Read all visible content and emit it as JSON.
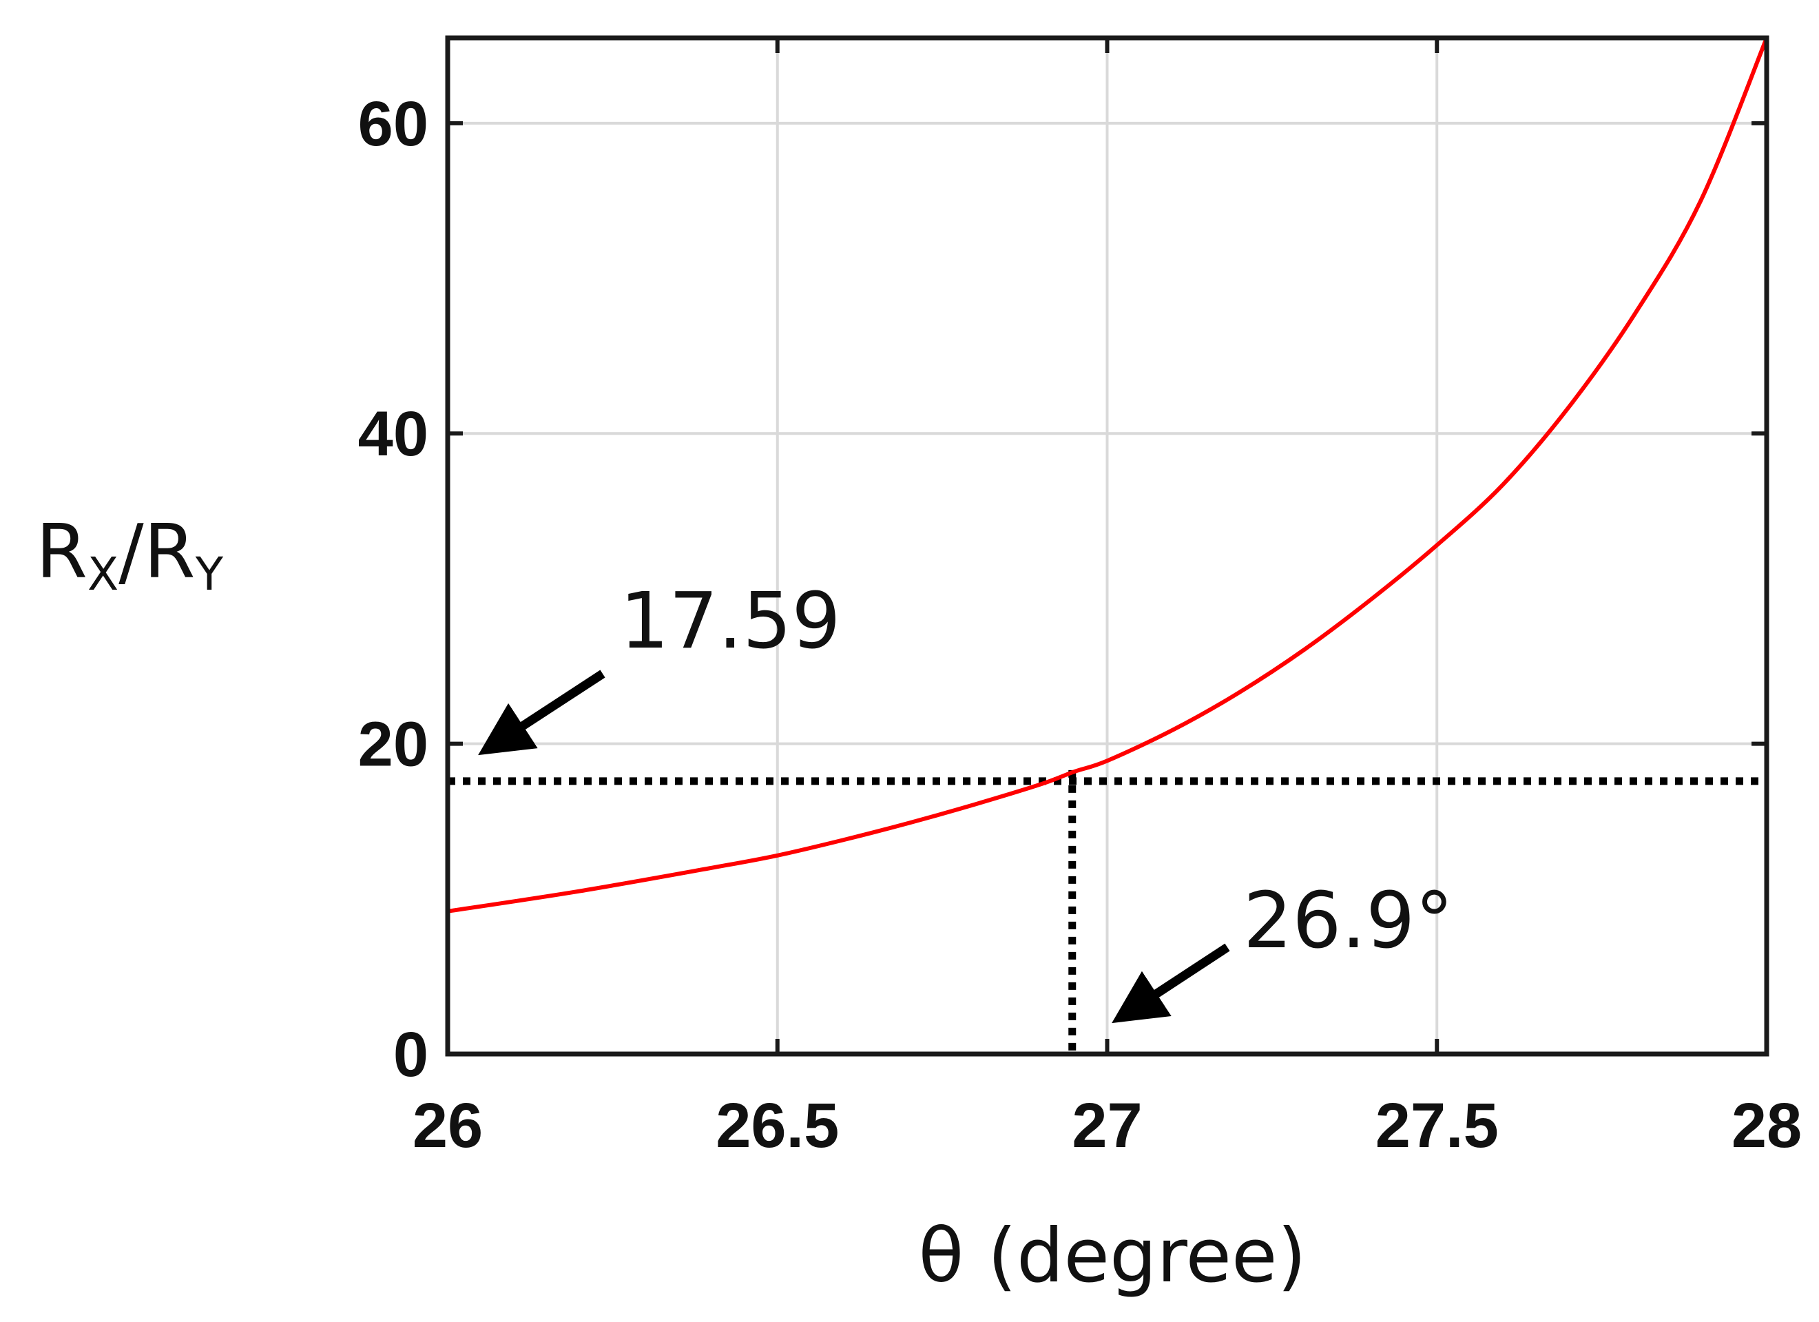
{
  "chart_data": {
    "type": "line",
    "title": "",
    "xlabel": "θ (degree)",
    "ylabel": {
      "main_1": "R",
      "sub_1": "X",
      "slash": "/",
      "main_2": "R",
      "sub_2": "Y"
    },
    "xlim": [
      26,
      28
    ],
    "ylim": [
      0,
      65.5
    ],
    "xticks": [
      "26",
      "26.5",
      "27",
      "27.5",
      "28"
    ],
    "yticks": [
      "0",
      "20",
      "40",
      "60"
    ],
    "grid": true,
    "series": [
      {
        "color": "#ff0000",
        "x": [
          26.0,
          26.2,
          26.4,
          26.5,
          26.6,
          26.7,
          26.8,
          26.9,
          26.95,
          27.0,
          27.1,
          27.2,
          27.3,
          27.4,
          27.5,
          27.6,
          27.7,
          27.8,
          27.9,
          28.0
        ],
        "y": [
          9.2,
          10.5,
          12.0,
          12.8,
          13.8,
          14.9,
          16.1,
          17.4,
          18.2,
          18.9,
          20.9,
          23.3,
          26.1,
          29.3,
          32.8,
          36.7,
          41.7,
          47.7,
          55.0,
          65.5
        ]
      }
    ],
    "reference_lines": [
      {
        "orientation": "horizontal",
        "value": 17.59,
        "style": "dotted",
        "color": "#000000"
      },
      {
        "orientation": "vertical",
        "value": 26.9,
        "style": "dotted",
        "color": "#000000"
      }
    ],
    "annotations": [
      {
        "text": "17.59",
        "points_to": {
          "x": 26.0,
          "y": 17.59
        }
      },
      {
        "text": "26.9°",
        "points_to": {
          "x": 26.9,
          "y": 0
        }
      }
    ]
  }
}
